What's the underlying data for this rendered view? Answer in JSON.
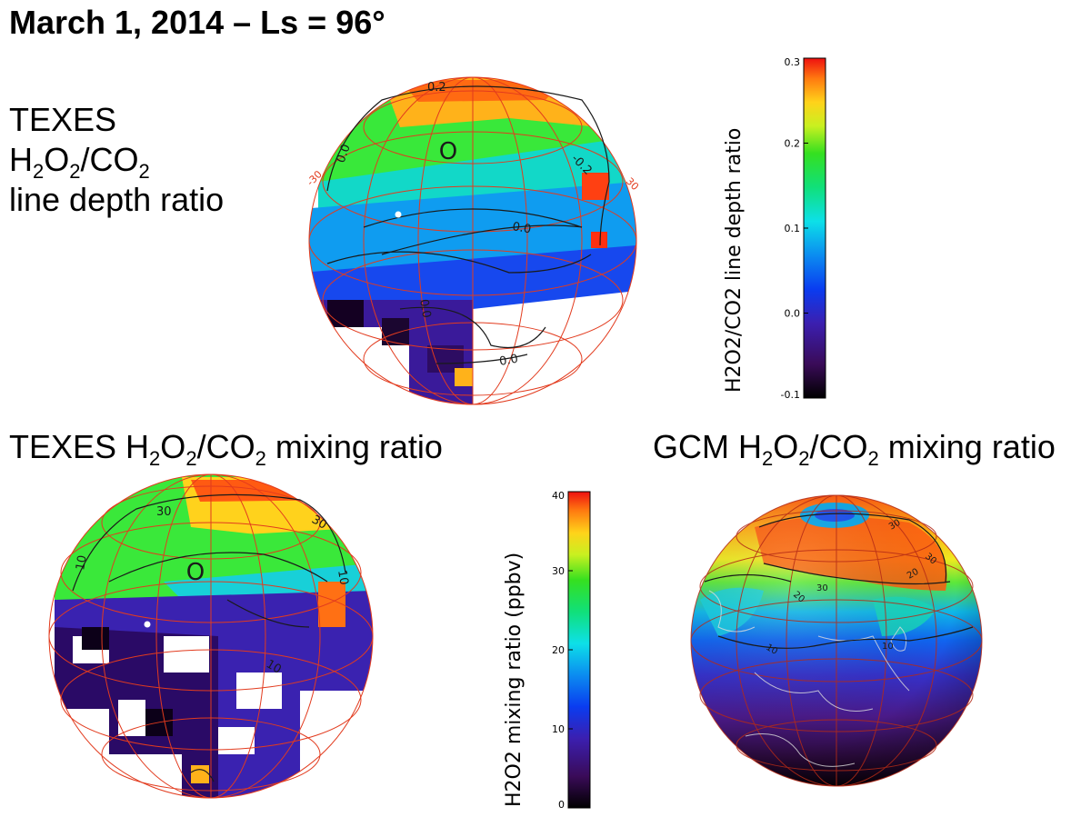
{
  "page": {
    "title": "March 1, 2014 – Ls = 96°"
  },
  "panels": {
    "top_left_label": {
      "line1": "TEXES",
      "line2_parts": [
        "H",
        "2",
        "O",
        "2",
        "/CO",
        "2"
      ],
      "line3": "line  depth ratio"
    },
    "bottom_left_label": {
      "parts": [
        "TEXES H",
        "2",
        "O",
        "2",
        "/CO",
        "2",
        " mixing ratio"
      ]
    },
    "bottom_right_label": {
      "parts": [
        "GCM H",
        "2",
        "O",
        "2",
        "/CO",
        "2",
        " mixing ratio"
      ]
    }
  },
  "chart_data": [
    {
      "type": "heatmap",
      "name": "TEXES line depth ratio map",
      "colorbar_label": "H2O2/CO2 line depth ratio",
      "colorbar_ticks": [
        "0.3",
        "0.2",
        "0.1",
        "0.0",
        "-0.1"
      ],
      "colorbar_range": [
        -0.1,
        0.3
      ],
      "contour_labels": [
        "0.2",
        "0.0",
        "-0.2",
        "0.0",
        "0.0",
        "0.0"
      ],
      "marker_label": "O",
      "grid_labels": [
        "-30",
        "30"
      ]
    },
    {
      "type": "heatmap",
      "name": "TEXES mixing ratio map",
      "colorbar_label": "H2O2 mixing ratio (ppbv)",
      "colorbar_ticks": [
        "40",
        "30",
        "20",
        "10",
        "0"
      ],
      "colorbar_range": [
        0,
        40
      ],
      "contour_labels": [
        "30",
        "30",
        "10",
        "10",
        "10"
      ],
      "marker_label": "O"
    },
    {
      "type": "heatmap",
      "name": "GCM mixing ratio map",
      "contour_labels": [
        "30",
        "30",
        "20",
        "30",
        "20",
        "10",
        "10"
      ]
    }
  ],
  "colors": {
    "grid": "#e23b1e",
    "contour": "#1a1a1a"
  }
}
